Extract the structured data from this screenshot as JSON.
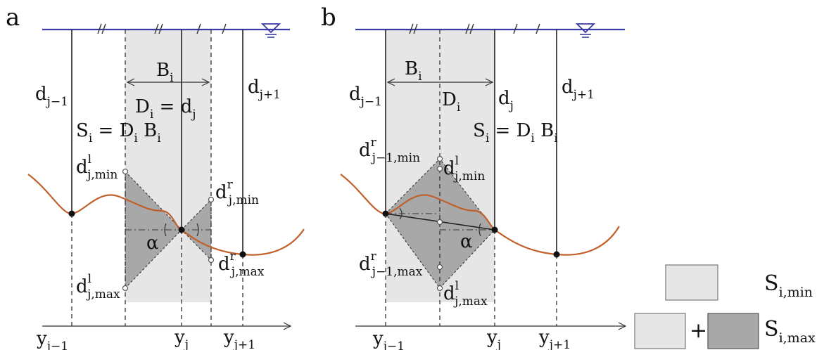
{
  "panels": {
    "a": {
      "letter": "a",
      "left_depth": {
        "base": "d",
        "sub": "j−1"
      },
      "right_depth": {
        "base": "d",
        "sub": "j+1"
      },
      "width": {
        "base": "B",
        "sub": "i"
      },
      "depth_eq": {
        "lhs_base": "D",
        "lhs_sub": "i",
        "eq": " = ",
        "rhs_base": "d",
        "rhs_sub": "j"
      },
      "area_eq": {
        "s": "S",
        "s_sub": "i",
        "eq": " = D",
        "d_sub": "i",
        "b": " B",
        "b_sub": "i"
      },
      "d_left_min": {
        "base": "d",
        "sup": "l",
        "sub": "j,min"
      },
      "d_left_max": {
        "base": "d",
        "sup": "l",
        "sub": "j,max"
      },
      "d_right_min": {
        "base": "d",
        "sup": "r",
        "sub": "j,min"
      },
      "d_right_max": {
        "base": "d",
        "sup": "r",
        "sub": "j,max"
      },
      "alpha": "α",
      "x_labels": [
        {
          "base": "y",
          "sub": "j−1"
        },
        {
          "base": "y",
          "sub": "j"
        },
        {
          "base": "y",
          "sub": "j+1"
        }
      ]
    },
    "b": {
      "letter": "b",
      "left_depth": {
        "base": "d",
        "sub": "j−1"
      },
      "mid_depth": {
        "base": "d",
        "sub": "j"
      },
      "right_depth": {
        "base": "d",
        "sub": "j+1"
      },
      "width": {
        "base": "B",
        "sub": "i"
      },
      "depth": {
        "base": "D",
        "sub": "i"
      },
      "area_eq": {
        "s": "S",
        "s_sub": "i",
        "eq": " = D",
        "d_sub": "i",
        "b": " B",
        "b_sub": "i"
      },
      "d_r_min": {
        "base": "d",
        "sup": "r",
        "sub": "j−1,min"
      },
      "d_l_min": {
        "base": "d",
        "sup": "l",
        "sub": "j,min"
      },
      "d_r_max": {
        "base": "d",
        "sup": "r",
        "sub": "j−1,max"
      },
      "d_l_max": {
        "base": "d",
        "sup": "l",
        "sub": "j,max"
      },
      "alpha": "α",
      "x_labels": [
        {
          "base": "y",
          "sub": "j−1"
        },
        {
          "base": "y",
          "sub": "j"
        },
        {
          "base": "y",
          "sub": "j+1"
        }
      ]
    }
  },
  "legend": {
    "min": {
      "base": "S",
      "sub": "i,min"
    },
    "plus": "+",
    "max": {
      "base": "S",
      "sub": "i,max"
    },
    "light_color": "#e6e6e6",
    "dark_color": "#a8a8a8"
  },
  "colors": {
    "water_line": "#3a3aa8",
    "bed_line": "#c0602a"
  }
}
